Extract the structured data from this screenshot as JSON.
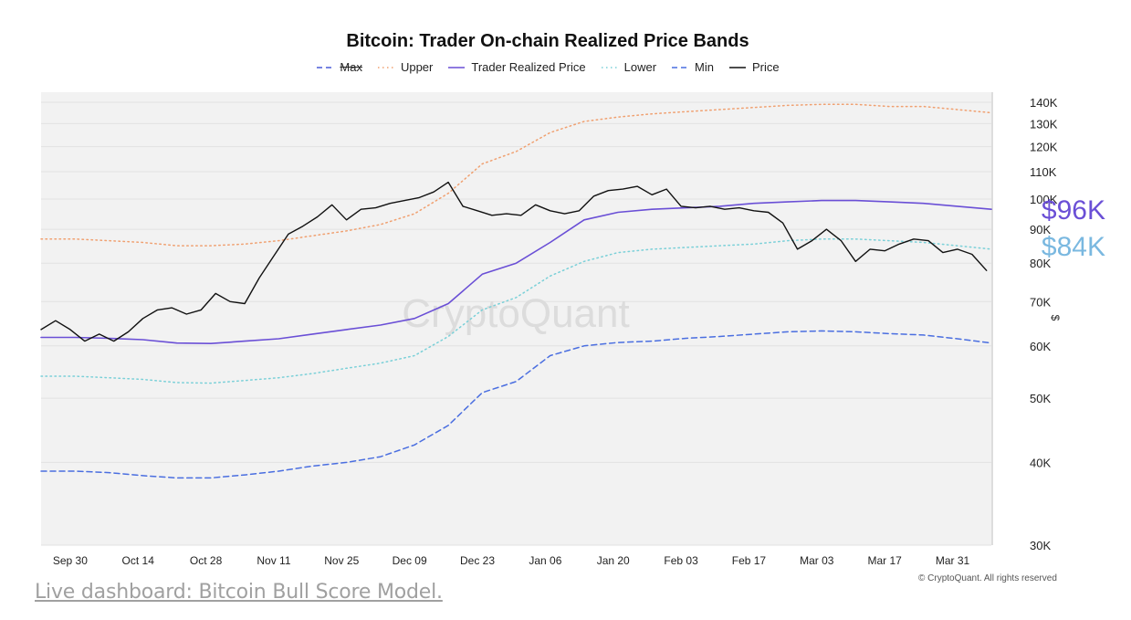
{
  "chart_data": {
    "type": "line",
    "title": "Bitcoin: Trader On-chain Realized Price Bands",
    "ylabel": "$",
    "yscale": "log",
    "ylim": [
      30000,
      145000
    ],
    "y_ticks": [
      30000,
      40000,
      50000,
      60000,
      70000,
      80000,
      90000,
      100000,
      110000,
      120000,
      130000,
      140000
    ],
    "y_tick_labels": [
      "30K",
      "40K",
      "50K",
      "60K",
      "70K",
      "80K",
      "90K",
      "100K",
      "110K",
      "120K",
      "130K",
      "140K"
    ],
    "x_range": [
      "2024-09-24",
      "2025-04-08"
    ],
    "x_tick_labels": [
      "Sep 30",
      "Oct 14",
      "Oct 28",
      "Nov 11",
      "Nov 25",
      "Dec 09",
      "Dec 23",
      "Jan 06",
      "Jan 20",
      "Feb 03",
      "Feb 17",
      "Mar 03",
      "Mar 17",
      "Mar 31"
    ],
    "x_tick_dates": [
      "2024-09-30",
      "2024-10-14",
      "2024-10-28",
      "2024-11-11",
      "2024-11-25",
      "2024-12-09",
      "2024-12-23",
      "2025-01-06",
      "2025-01-20",
      "2025-02-03",
      "2025-02-17",
      "2025-03-03",
      "2025-03-17",
      "2025-03-31"
    ],
    "grid": true,
    "legend_position": "top-center",
    "watermark": "CryptoQuant",
    "series": [
      {
        "name": "Max",
        "style": "dashed",
        "color": "#4a5bd8",
        "visible": false,
        "x": [],
        "values": []
      },
      {
        "name": "Upper",
        "style": "dotted",
        "color": "#f0a070",
        "x": [
          "2024-09-24",
          "2024-10-01",
          "2024-10-08",
          "2024-10-15",
          "2024-10-22",
          "2024-10-29",
          "2024-11-05",
          "2024-11-12",
          "2024-11-19",
          "2024-11-26",
          "2024-12-03",
          "2024-12-10",
          "2024-12-17",
          "2024-12-24",
          "2024-12-31",
          "2025-01-07",
          "2025-01-14",
          "2025-01-21",
          "2025-01-28",
          "2025-02-04",
          "2025-02-11",
          "2025-02-18",
          "2025-02-25",
          "2025-03-04",
          "2025-03-11",
          "2025-03-18",
          "2025-03-25",
          "2025-04-01",
          "2025-04-08"
        ],
        "values": [
          87000,
          87000,
          86500,
          86000,
          85000,
          85000,
          85500,
          86500,
          88000,
          89500,
          91500,
          95000,
          102000,
          113000,
          118000,
          126000,
          131000,
          133000,
          134500,
          135500,
          136500,
          137500,
          138500,
          139000,
          139000,
          138000,
          138000,
          136500,
          135000
        ]
      },
      {
        "name": "Trader Realized Price",
        "style": "solid",
        "color": "#6a4fd6",
        "x": [
          "2024-09-24",
          "2024-10-01",
          "2024-10-08",
          "2024-10-15",
          "2024-10-22",
          "2024-10-29",
          "2024-11-05",
          "2024-11-12",
          "2024-11-19",
          "2024-11-26",
          "2024-12-03",
          "2024-12-10",
          "2024-12-17",
          "2024-12-24",
          "2024-12-31",
          "2025-01-07",
          "2025-01-14",
          "2025-01-21",
          "2025-01-28",
          "2025-02-04",
          "2025-02-11",
          "2025-02-18",
          "2025-02-25",
          "2025-03-04",
          "2025-03-11",
          "2025-03-18",
          "2025-03-25",
          "2025-04-01",
          "2025-04-08"
        ],
        "values": [
          61800,
          61800,
          61600,
          61300,
          60600,
          60500,
          61000,
          61500,
          62500,
          63500,
          64500,
          66000,
          69500,
          77000,
          80000,
          86000,
          93000,
          95500,
          96500,
          97000,
          97500,
          98500,
          99000,
          99500,
          99500,
          99000,
          98500,
          97500,
          96500
        ]
      },
      {
        "name": "Lower",
        "style": "dotted",
        "color": "#7ad0d8",
        "x": [
          "2024-09-24",
          "2024-10-01",
          "2024-10-08",
          "2024-10-15",
          "2024-10-22",
          "2024-10-29",
          "2024-11-05",
          "2024-11-12",
          "2024-11-19",
          "2024-11-26",
          "2024-12-03",
          "2024-12-10",
          "2024-12-17",
          "2024-12-24",
          "2024-12-31",
          "2025-01-07",
          "2025-01-14",
          "2025-01-21",
          "2025-01-28",
          "2025-02-04",
          "2025-02-11",
          "2025-02-18",
          "2025-02-25",
          "2025-03-04",
          "2025-03-11",
          "2025-03-18",
          "2025-03-25",
          "2025-04-01",
          "2025-04-08"
        ],
        "values": [
          54000,
          54000,
          53700,
          53400,
          52800,
          52700,
          53200,
          53700,
          54500,
          55500,
          56500,
          58000,
          62000,
          68000,
          71000,
          76500,
          80500,
          83000,
          84000,
          84500,
          85000,
          85500,
          86500,
          87000,
          87000,
          86500,
          86000,
          85000,
          84000
        ]
      },
      {
        "name": "Min",
        "style": "dashed",
        "color": "#4a6ee0",
        "x": [
          "2024-09-24",
          "2024-10-01",
          "2024-10-08",
          "2024-10-15",
          "2024-10-22",
          "2024-10-29",
          "2024-11-05",
          "2024-11-12",
          "2024-11-19",
          "2024-11-26",
          "2024-12-03",
          "2024-12-10",
          "2024-12-17",
          "2024-12-24",
          "2024-12-31",
          "2025-01-07",
          "2025-01-14",
          "2025-01-21",
          "2025-01-28",
          "2025-02-04",
          "2025-02-11",
          "2025-02-18",
          "2025-02-25",
          "2025-03-04",
          "2025-03-11",
          "2025-03-18",
          "2025-03-25",
          "2025-04-01",
          "2025-04-08"
        ],
        "values": [
          38800,
          38800,
          38600,
          38200,
          37900,
          37900,
          38300,
          38800,
          39500,
          40000,
          40800,
          42500,
          45500,
          51000,
          53000,
          58000,
          60000,
          60700,
          61000,
          61600,
          62000,
          62500,
          63000,
          63200,
          63000,
          62600,
          62300,
          61500,
          60600
        ]
      },
      {
        "name": "Price",
        "style": "solid",
        "color": "#111111",
        "x": [
          "2024-09-24",
          "2024-09-27",
          "2024-09-30",
          "2024-10-03",
          "2024-10-06",
          "2024-10-09",
          "2024-10-12",
          "2024-10-15",
          "2024-10-18",
          "2024-10-21",
          "2024-10-24",
          "2024-10-27",
          "2024-10-30",
          "2024-11-02",
          "2024-11-05",
          "2024-11-08",
          "2024-11-11",
          "2024-11-14",
          "2024-11-17",
          "2024-11-20",
          "2024-11-23",
          "2024-11-26",
          "2024-11-29",
          "2024-12-02",
          "2024-12-05",
          "2024-12-08",
          "2024-12-11",
          "2024-12-14",
          "2024-12-17",
          "2024-12-20",
          "2024-12-23",
          "2024-12-26",
          "2024-12-29",
          "2025-01-01",
          "2025-01-04",
          "2025-01-07",
          "2025-01-10",
          "2025-01-13",
          "2025-01-16",
          "2025-01-19",
          "2025-01-22",
          "2025-01-25",
          "2025-01-28",
          "2025-01-31",
          "2025-02-03",
          "2025-02-06",
          "2025-02-09",
          "2025-02-12",
          "2025-02-15",
          "2025-02-18",
          "2025-02-21",
          "2025-02-24",
          "2025-02-27",
          "2025-03-02",
          "2025-03-05",
          "2025-03-08",
          "2025-03-11",
          "2025-03-14",
          "2025-03-17",
          "2025-03-20",
          "2025-03-23",
          "2025-03-26",
          "2025-03-29",
          "2025-04-01",
          "2025-04-04",
          "2025-04-07"
        ],
        "values": [
          63500,
          65500,
          63500,
          61000,
          62500,
          61000,
          63000,
          66000,
          68000,
          68500,
          67000,
          68000,
          72000,
          70000,
          69500,
          76000,
          82000,
          88500,
          91000,
          94000,
          98000,
          93000,
          96500,
          97000,
          98500,
          99500,
          100500,
          102500,
          106000,
          97500,
          96000,
          94500,
          95000,
          94500,
          98000,
          96000,
          95000,
          96000,
          101000,
          103000,
          103500,
          104500,
          101500,
          103500,
          97500,
          97000,
          97500,
          96500,
          97000,
          96000,
          95500,
          92000,
          84000,
          86500,
          90000,
          86500,
          80500,
          84000,
          83500,
          85500,
          87000,
          86500,
          83000,
          84000,
          82500,
          78000
        ]
      }
    ]
  },
  "legend": {
    "items": [
      {
        "label": "Max",
        "style": "dashed",
        "color": "#4a5bd8",
        "strike": true
      },
      {
        "label": "Upper",
        "style": "dotted",
        "color": "#f0a070"
      },
      {
        "label": "Trader Realized Price",
        "style": "solid",
        "color": "#6a4fd6"
      },
      {
        "label": "Lower",
        "style": "dotted",
        "color": "#7ad0d8"
      },
      {
        "label": "Min",
        "style": "dashed",
        "color": "#4a6ee0"
      },
      {
        "label": "Price",
        "style": "solid",
        "color": "#111111"
      }
    ]
  },
  "annotations": {
    "trader_price_label": "$96K",
    "trader_price_color": "#6a4fd6",
    "lower_price_label": "$84K",
    "lower_price_color": "#7ab8e0"
  },
  "footer": {
    "copyright": "© CryptoQuant. All rights reserved",
    "dashboard_link": "Live dashboard: Bitcoin Bull Score Model."
  }
}
